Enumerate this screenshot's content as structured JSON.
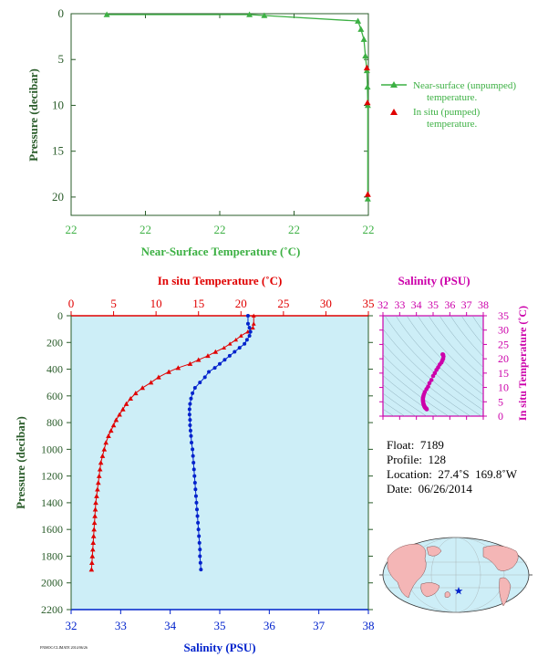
{
  "top_chart": {
    "xlabel": "Near-Surface Temperature (˚C)",
    "ylabel": "Pressure (decibar)",
    "x_tick_labels": [
      "22",
      "22",
      "22",
      "22",
      "22"
    ],
    "y_ticks": [
      0,
      5,
      10,
      15,
      20
    ],
    "legend": {
      "unpumped_line1": "Near-surface (unpumped)",
      "unpumped_line2": "temperature.",
      "pumped_line1": "In situ (pumped)",
      "pumped_line2": "temperature."
    },
    "colors": {
      "unpumped": "#3cb043",
      "pumped": "#e00000"
    }
  },
  "profile_chart": {
    "top_axis_label": "In situ Temperature (˚C)",
    "bottom_axis_label": "Salinity (PSU)",
    "ylabel": "Pressure (decibar)",
    "temp_ticks": [
      0,
      5,
      10,
      15,
      20,
      25,
      30,
      35
    ],
    "sal_ticks": [
      32,
      33,
      34,
      35,
      36,
      37,
      38
    ],
    "pressure_ticks": [
      0,
      200,
      400,
      600,
      800,
      1000,
      1200,
      1400,
      1600,
      1800,
      2000,
      2200
    ],
    "colors": {
      "temperature": "#e00000",
      "salinity": "#0022cc",
      "background": "#cdeef7"
    }
  },
  "ts_chart": {
    "top_axis_label": "Salinity (PSU)",
    "right_axis_label": "In situ Temperature (˚C)",
    "sal_ticks": [
      32,
      33,
      34,
      35,
      36,
      37,
      38
    ],
    "temp_ticks": [
      0,
      5,
      10,
      15,
      20,
      25,
      30,
      35
    ],
    "color": "#cc00aa"
  },
  "info": {
    "float": "Float:  7189",
    "profile": "Profile:  128",
    "location": "Location:  27.4˚S  169.8˚W",
    "date": "Date:  06/26/2014"
  },
  "footer_code": "FNMOC/CLIMATE 2014/06/26",
  "chart_data": [
    {
      "type": "line",
      "series": [
        {
          "name": "Near-surface (unpumped) temperature.",
          "x": [
            0.12,
            0.6,
            0.65,
            0.965,
            0.975,
            0.985,
            0.99,
            0.995,
            0.997,
            0.998,
            0.998
          ],
          "y": [
            0.1,
            0.1,
            0.2,
            0.8,
            1.7,
            2.8,
            4.6,
            6.2,
            8.0,
            10.0,
            20.2
          ]
        },
        {
          "name": "In situ (pumped) temperature.",
          "x": [
            0.995,
            0.997,
            0.998
          ],
          "y": [
            5.9,
            9.7,
            19.7
          ]
        }
      ],
      "ylim": [
        0,
        22
      ]
    },
    {
      "type": "line",
      "pressure": [
        0,
        60,
        90,
        120,
        150,
        180,
        210,
        240,
        270,
        300,
        330,
        360,
        390,
        420,
        460,
        500,
        540,
        580,
        620,
        660,
        700,
        740,
        780,
        820,
        860,
        900,
        950,
        1000,
        1050,
        1100,
        1150,
        1200,
        1250,
        1300,
        1350,
        1400,
        1450,
        1500,
        1550,
        1600,
        1650,
        1700,
        1750,
        1800,
        1850,
        1900
      ],
      "temperature": [
        21.5,
        21.5,
        21.4,
        20.8,
        20.0,
        19.4,
        18.7,
        18.0,
        17.0,
        16.1,
        15.0,
        14.0,
        12.6,
        11.5,
        10.3,
        9.4,
        8.4,
        7.6,
        7.0,
        6.5,
        6.1,
        5.7,
        5.3,
        5.0,
        4.7,
        4.4,
        4.1,
        3.9,
        3.7,
        3.5,
        3.4,
        3.3,
        3.2,
        3.1,
        3.0,
        2.9,
        2.85,
        2.8,
        2.75,
        2.7,
        2.65,
        2.6,
        2.55,
        2.5,
        2.45,
        2.4
      ],
      "salinity": [
        35.57,
        35.57,
        35.6,
        35.62,
        35.6,
        35.55,
        35.5,
        35.4,
        35.3,
        35.2,
        35.1,
        35.0,
        34.9,
        34.78,
        34.7,
        34.6,
        34.5,
        34.45,
        34.42,
        34.4,
        34.39,
        34.39,
        34.4,
        34.4,
        34.41,
        34.42,
        34.43,
        34.45,
        34.46,
        34.47,
        34.48,
        34.49,
        34.5,
        34.51,
        34.52,
        34.53,
        34.54,
        34.55,
        34.56,
        34.57,
        34.58,
        34.59,
        34.6,
        34.6,
        34.61,
        34.62
      ],
      "temp_range": [
        0,
        35
      ],
      "sal_range": [
        32,
        38
      ],
      "ylim": [
        0,
        2200
      ]
    },
    {
      "type": "scatter",
      "xlim": [
        32,
        38
      ],
      "ylim": [
        0,
        35
      ]
    }
  ]
}
